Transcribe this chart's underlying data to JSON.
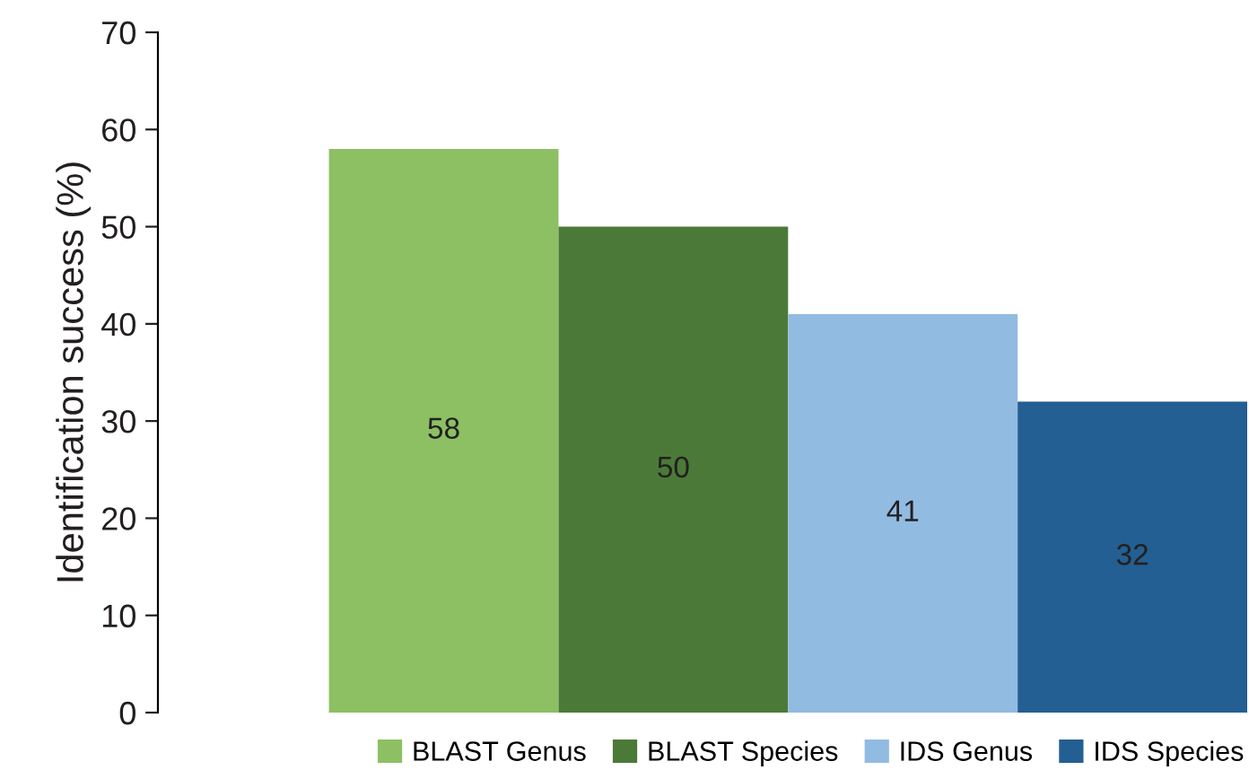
{
  "chart_data": {
    "type": "bar",
    "ylabel": "Identification success (%)",
    "categories": [
      null
    ],
    "series": [
      {
        "name": "BLAST Genus",
        "color": "#8cc063",
        "values": [
          58
        ]
      },
      {
        "name": "BLAST Species",
        "color": "#4b7a38",
        "values": [
          50
        ]
      },
      {
        "name": "IDS Genus",
        "color": "#92bbe1",
        "values": [
          41
        ]
      },
      {
        "name": "IDS Species",
        "color": "#235f92",
        "values": [
          32
        ]
      }
    ],
    "ylim": [
      0,
      70
    ],
    "yticks": [
      0,
      10,
      20,
      30,
      40,
      50,
      60,
      70
    ],
    "data_labels": true,
    "legend": "bottom",
    "grid": false
  }
}
